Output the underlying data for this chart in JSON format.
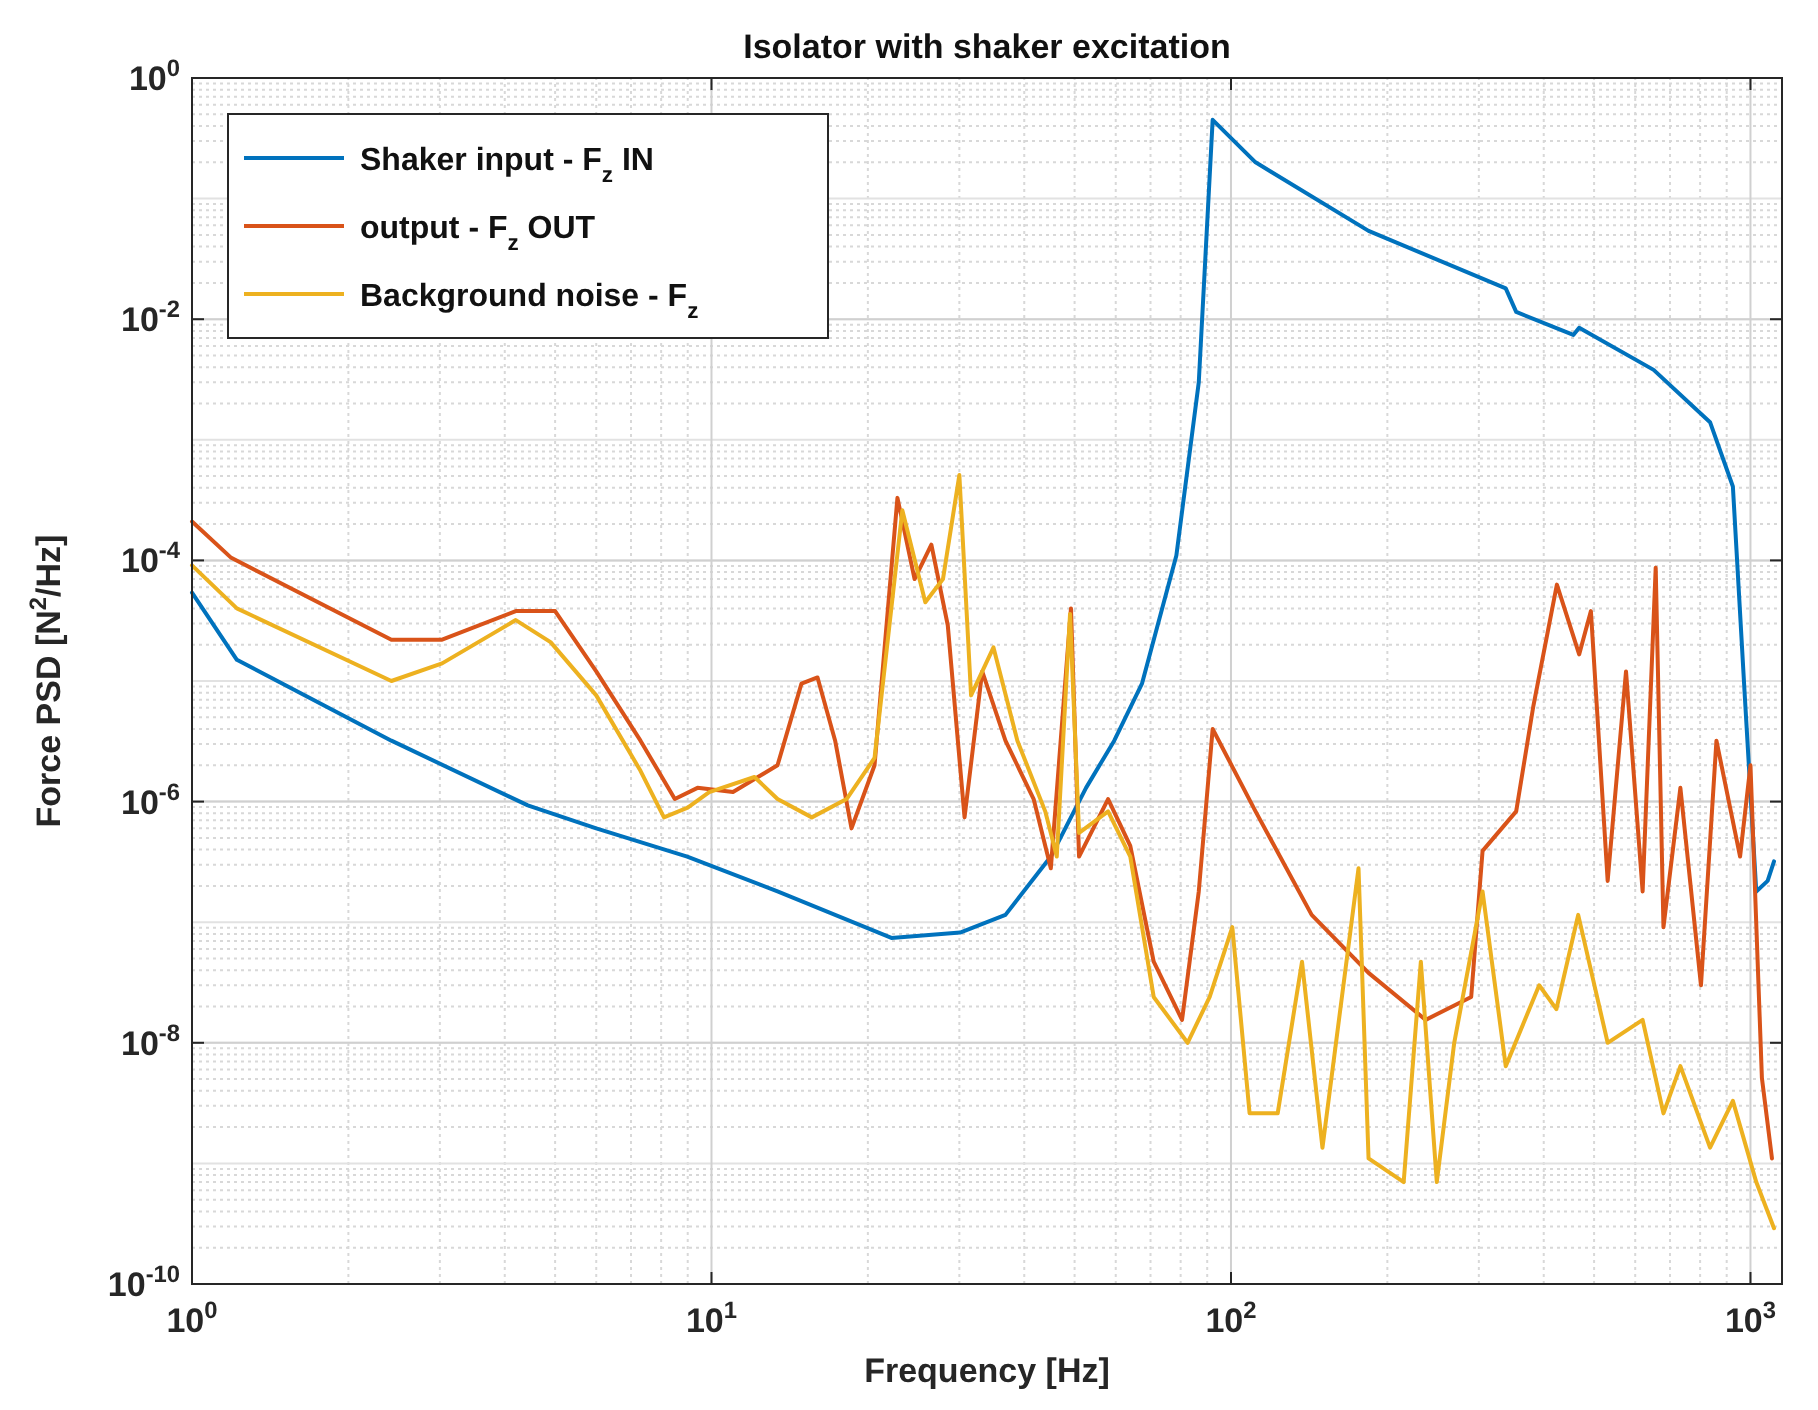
{
  "chart_data": {
    "type": "line",
    "title": "Isolator with shaker excitation",
    "xlabel": "Frequency [Hz]",
    "ylabel": "Force PSD [N$^{2}$/Hz]",
    "log": "xy",
    "grid": true,
    "legend": "top left",
    "line_style": "solid",
    "marker": "none",
    "xlim": [
      1,
      1150
    ],
    "xticks": [
      {
        "value": 1,
        "label": "10$^{0}$"
      },
      {
        "value": 10,
        "label": "10$^{1}$"
      },
      {
        "value": 100,
        "label": "10$^{2}$"
      },
      {
        "value": 1000,
        "label": "10$^{3}$"
      }
    ],
    "ylim": [
      1e-10,
      1
    ],
    "yticks": [
      {
        "value": 1e-10,
        "label": "10$^{-10}$"
      },
      {
        "value": 1e-08,
        "label": "10$^{-8}$"
      },
      {
        "value": 1e-06,
        "label": "10$^{-6}$"
      },
      {
        "value": 0.0001,
        "label": "10$^{-4}$"
      },
      {
        "value": 0.01,
        "label": "10$^{-2}$"
      },
      {
        "value": 1,
        "label": "10$^{0}$"
      }
    ],
    "series": [
      {
        "name": "Shaker input - F$_{z}$ IN",
        "color": "#0072bd",
        "x": [
          1,
          1.22,
          2.42,
          4.43,
          6,
          8.98,
          13.4,
          22.2,
          30.1,
          36.8,
          45,
          52.6,
          59.6,
          67.4,
          78.5,
          86.7,
          92.2,
          111.5,
          184,
          338,
          354,
          456,
          468,
          651,
          836,
          925,
          975,
          1026,
          1079,
          1110
        ],
        "values": [
          5.4e-05,
          1.5e-05,
          3.2e-06,
          9.3e-07,
          6e-07,
          3.5e-07,
          1.8e-07,
          7.4e-08,
          8.2e-08,
          1.15e-07,
          3.5e-07,
          1.3e-06,
          3.2e-06,
          9.5e-06,
          0.00011,
          0.003,
          0.45,
          0.2,
          0.054,
          0.018,
          0.0115,
          0.0074,
          0.0085,
          0.0038,
          0.0014,
          0.00041,
          7.6e-06,
          1.8e-07,
          2.2e-07,
          3.2e-07
        ]
      },
      {
        "name": "output - F$_{z}$ OUT",
        "color": "#d95319",
        "x": [
          1,
          1.19,
          2.42,
          3.03,
          4.2,
          5,
          6,
          7.3,
          8.5,
          9.4,
          11,
          13.4,
          14.9,
          16,
          17.3,
          18.6,
          20.6,
          22.8,
          24.6,
          26.5,
          28.5,
          30.7,
          33.2,
          36.8,
          41.7,
          45,
          49.2,
          51,
          58,
          64,
          71,
          80.5,
          86.7,
          92.2,
          111.5,
          143,
          184,
          237,
          290,
          305,
          354,
          382,
          424,
          468,
          493,
          531,
          576,
          620,
          657,
          680,
          733,
          803,
          860,
          955,
          1000,
          1052,
          1100
        ],
        "values": [
          0.00021,
          0.000105,
          2.2e-05,
          2.2e-05,
          3.8e-05,
          3.8e-05,
          1.2e-05,
          3.2e-06,
          1.05e-06,
          1.3e-06,
          1.2e-06,
          2e-06,
          9.5e-06,
          1.07e-05,
          3.2e-06,
          6e-07,
          2e-06,
          0.00033,
          7e-05,
          0.000135,
          2.9e-05,
          7.4e-07,
          1.2e-05,
          3.2e-06,
          1.05e-06,
          2.8e-07,
          4e-05,
          3.5e-07,
          1.05e-06,
          4.3e-07,
          4.7e-08,
          1.55e-08,
          1.8e-07,
          4e-06,
          8.3e-07,
          1.15e-07,
          3.8e-08,
          1.55e-08,
          2.4e-08,
          3.9e-07,
          8.3e-07,
          6.2e-06,
          6.3e-05,
          1.66e-05,
          3.8e-05,
          2.2e-07,
          1.2e-05,
          1.8e-07,
          8.7e-05,
          9.1e-08,
          1.3e-06,
          3e-08,
          3.2e-06,
          3.5e-07,
          2e-06,
          5.1e-09,
          1.1e-09
        ]
      },
      {
        "name": "Background noise - F$_{z}$",
        "color": "#edb120",
        "x": [
          1,
          1.22,
          2.42,
          3.03,
          4.2,
          4.9,
          6,
          7.3,
          8.1,
          9,
          9.9,
          12.1,
          13.4,
          15.6,
          18.2,
          20.6,
          23.3,
          25.8,
          27.9,
          30,
          31.6,
          34.9,
          38.8,
          43.9,
          46.2,
          49,
          51,
          58,
          64,
          71,
          82.5,
          91,
          100.6,
          108.6,
          123,
          137,
          150,
          176,
          184,
          215,
          232,
          249,
          269,
          305,
          338,
          392,
          423,
          466,
          531,
          620,
          680,
          733,
          836,
          925,
          1026,
          1110
        ],
        "values": [
          9.1e-05,
          4e-05,
          1e-05,
          1.4e-05,
          3.2e-05,
          2.1e-05,
          7.6e-06,
          1.8e-06,
          7.4e-07,
          8.9e-07,
          1.2e-06,
          1.6e-06,
          1.05e-06,
          7.4e-07,
          1.05e-06,
          2.3e-06,
          0.00026,
          4.5e-05,
          7e-05,
          0.00051,
          7.6e-06,
          1.9e-05,
          3.2e-06,
          8.3e-07,
          3.5e-07,
          3.6e-05,
          5.5e-07,
          8.3e-07,
          3.5e-07,
          2.4e-08,
          1e-08,
          2.4e-08,
          9.1e-08,
          2.6e-09,
          2.6e-09,
          4.7e-08,
          1.35e-09,
          2.8e-07,
          1.1e-09,
          7e-10,
          4.7e-08,
          7e-10,
          1e-08,
          1.8e-07,
          6.4e-09,
          3e-08,
          1.9e-08,
          1.15e-07,
          1e-08,
          1.55e-08,
          2.6e-09,
          6.4e-09,
          1.35e-09,
          3.3e-09,
          7e-10,
          2.9e-10
        ]
      }
    ]
  }
}
